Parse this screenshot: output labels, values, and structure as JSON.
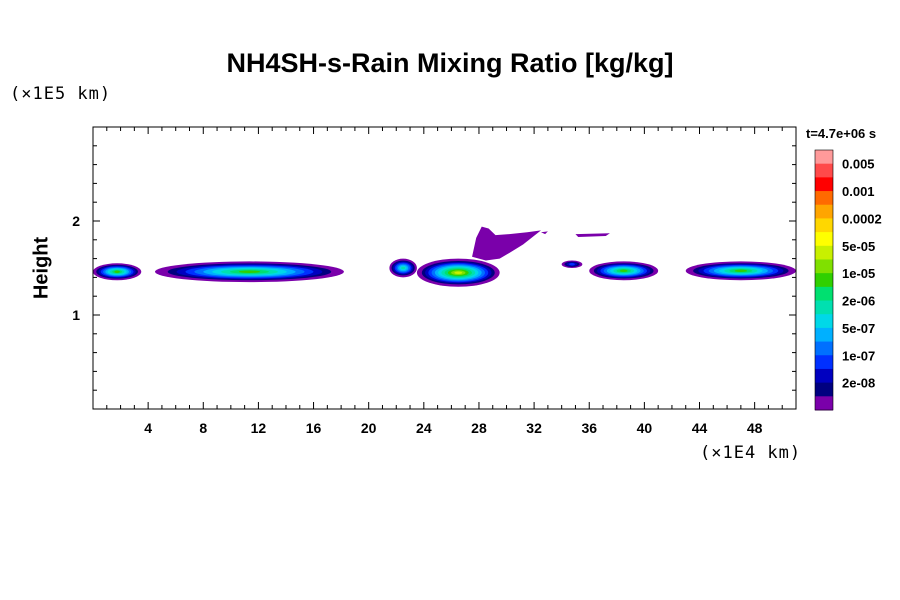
{
  "chart_data": {
    "type": "heatmap",
    "title": "NH4SH-s-Rain Mixing Ratio [kg/kg]",
    "ylabel": "Height",
    "y_unit": "(×1E5 km)",
    "x_unit": "(×1E4 km)",
    "time_label": "t=4.7e+06 s",
    "xlim": [
      0,
      51
    ],
    "ylim": [
      0,
      3
    ],
    "x_ticks": [
      4,
      8,
      12,
      16,
      20,
      24,
      28,
      32,
      36,
      40,
      44,
      48
    ],
    "y_ticks": [
      1,
      2
    ],
    "x_tick_labels": [
      "4",
      "8",
      "12",
      "16",
      "20",
      "24",
      "28",
      "32",
      "36",
      "40",
      "44",
      "48"
    ],
    "y_tick_labels": [
      "1",
      "2"
    ],
    "colorbar": {
      "levels": [
        "0.005",
        "0.001",
        "0.0002",
        "5e-05",
        "1e-05",
        "2e-06",
        "5e-07",
        "1e-07",
        "2e-08"
      ],
      "colors": [
        "#ff9a9a",
        "#ff4a4a",
        "#ff0000",
        "#ff6a00",
        "#ffa500",
        "#ffd700",
        "#ffff00",
        "#c8f000",
        "#80e000",
        "#30d000",
        "#00e070",
        "#00e0b0",
        "#00d8e8",
        "#00b0ff",
        "#0070ff",
        "#0030ff",
        "#0000c0",
        "#000080",
        "#7a00aa"
      ]
    },
    "regions": [
      {
        "x": [
          0,
          3.5
        ],
        "y": [
          1.37,
          1.55
        ],
        "peak": "1e-05"
      },
      {
        "x": [
          4.5,
          18.2
        ],
        "y": [
          1.35,
          1.57
        ],
        "peak": "1e-05"
      },
      {
        "x": [
          21.5,
          23.5
        ],
        "y": [
          1.4,
          1.6
        ],
        "peak": "2e-06"
      },
      {
        "x": [
          23.5,
          29.5
        ],
        "y": [
          1.3,
          1.6
        ],
        "peak": "5e-05"
      },
      {
        "x": [
          27.5,
          32.5
        ],
        "y": [
          1.6,
          1.95
        ],
        "peak": "2e-08"
      },
      {
        "x": [
          34,
          35.5
        ],
        "y": [
          1.5,
          1.58
        ],
        "peak": "1e-07"
      },
      {
        "x": [
          36,
          41
        ],
        "y": [
          1.37,
          1.57
        ],
        "peak": "1e-05"
      },
      {
        "x": [
          43,
          51
        ],
        "y": [
          1.37,
          1.57
        ],
        "peak": "1e-05"
      }
    ]
  }
}
